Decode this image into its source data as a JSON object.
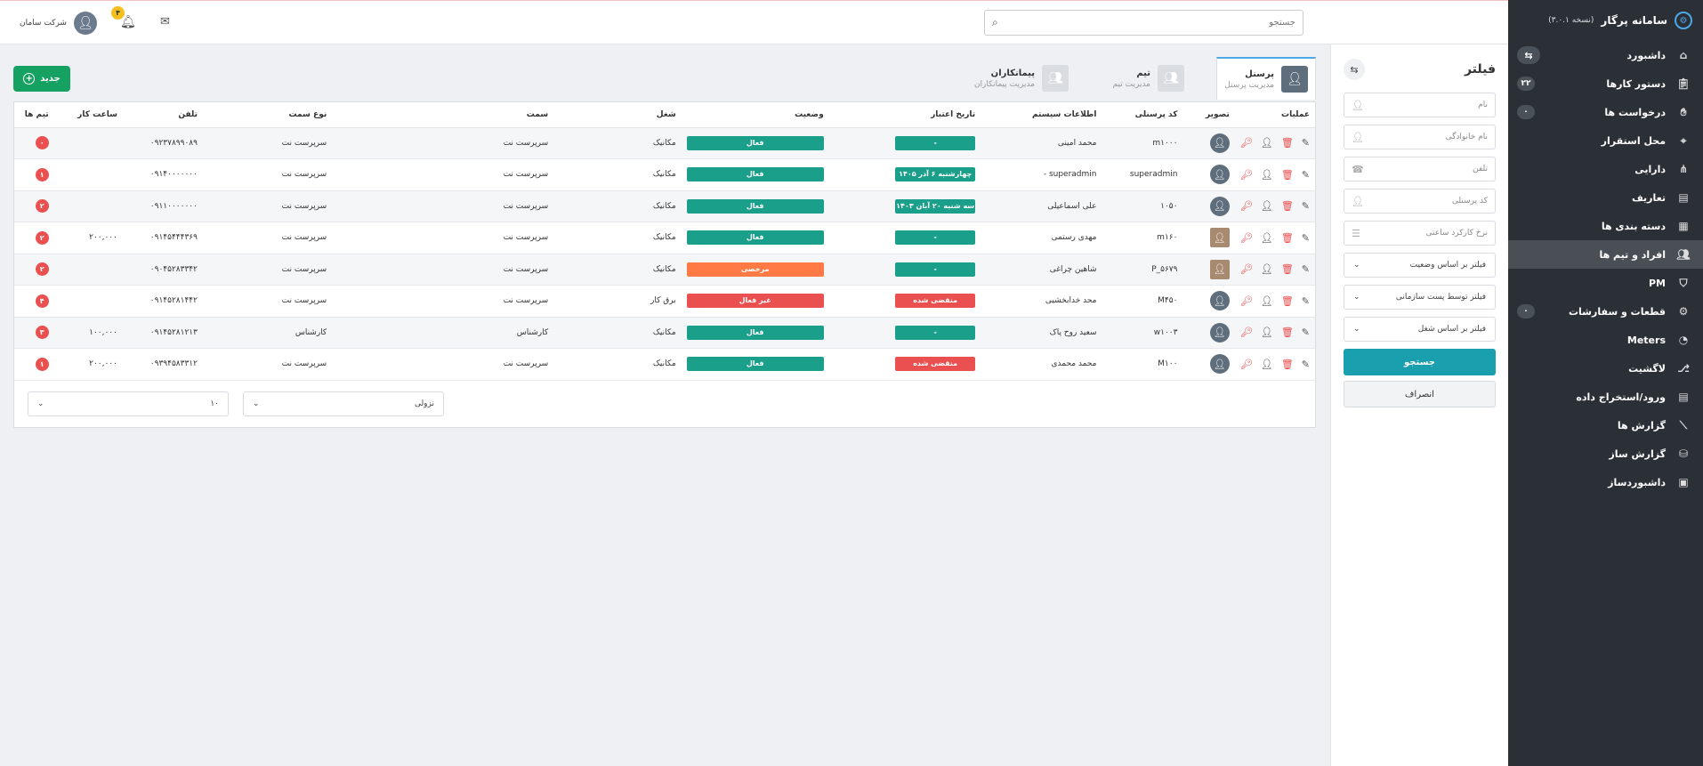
{
  "app": {
    "title": "سامانه پرگار",
    "version": "(نسخه ۳.۰.۱)"
  },
  "sidebar": {
    "items": [
      {
        "label": "داشبورد",
        "icon": "home-icon",
        "badge": null,
        "toggle": "⇆"
      },
      {
        "label": "دستور کارها",
        "icon": "clipboard-icon",
        "badge": "۲۲"
      },
      {
        "label": "درخواست ها",
        "icon": "hand-icon",
        "badge": "۰"
      },
      {
        "label": "محل استقرار",
        "icon": "location-pin-icon",
        "badge": null
      },
      {
        "label": "دارایی",
        "icon": "network-icon",
        "badge": null
      },
      {
        "label": "تعاریف",
        "icon": "book-icon",
        "badge": null
      },
      {
        "label": "دسته بندی ها",
        "icon": "grid-icon",
        "badge": null
      },
      {
        "label": "افراد و تیم ها",
        "icon": "people-icon",
        "badge": null,
        "active": true
      },
      {
        "label": "PM",
        "icon": "shield-icon",
        "badge": null
      },
      {
        "label": "قطعات و سفارشات",
        "icon": "gear-icon",
        "badge": "۰"
      },
      {
        "label": "Meters",
        "icon": "gauge-icon",
        "badge": null
      },
      {
        "label": "لاگشیت",
        "icon": "flow-icon",
        "badge": null
      },
      {
        "label": "ورود/استخراج داده",
        "icon": "book-icon",
        "badge": null
      },
      {
        "label": "گزارش ها",
        "icon": "chart-line-icon",
        "badge": null
      },
      {
        "label": "گزارش ساز",
        "icon": "database-icon",
        "badge": null
      },
      {
        "label": "داشبوردساز",
        "icon": "layout-icon",
        "badge": null
      }
    ]
  },
  "topbar": {
    "search_placeholder": "جستجو",
    "company": "شرکت سامان",
    "notifications": "۴"
  },
  "filter": {
    "title": "فیلتر",
    "swap": "⇆",
    "inputs": [
      {
        "placeholder": "نام",
        "icon": "user-outline-icon"
      },
      {
        "placeholder": "نام خانوادگی",
        "icon": "user-outline-icon"
      },
      {
        "placeholder": "تلفن",
        "icon": "phone-icon"
      },
      {
        "placeholder": "کد پرسنلی",
        "icon": "user-outline-icon"
      },
      {
        "placeholder": "نرخ کارکرد ساعتی",
        "icon": "list-icon"
      }
    ],
    "selects": [
      "فیلتر بر اساس وضعیت",
      "فیلتر توسط پست سازمانی",
      "فیلتر بر اساس شغل"
    ],
    "search_button": "جستجو",
    "cancel_button": "انصراف"
  },
  "tabs": [
    {
      "title": "پرسنل",
      "subtitle": "مدیریت پرسنل",
      "active": true
    },
    {
      "title": "تیم",
      "subtitle": "مدیریت تیم",
      "active": false
    },
    {
      "title": "پیمانکاران",
      "subtitle": "مدیریت پیمانکاران",
      "active": false
    }
  ],
  "new_button": "جدید",
  "table": {
    "headers": [
      "عملیات",
      "تصویر",
      "کد پرسنلی",
      "اطلاعات سیستم",
      "تاریخ اعتبار",
      "وضعیت",
      "شغل",
      "سمت",
      "نوع سمت",
      "تلفن",
      "ساعت کار",
      "تیم ها"
    ],
    "rows": [
      {
        "code": "m۱۰۰۰",
        "name": "محمد امینی",
        "date": "-",
        "date_color": "green",
        "status": "فعال",
        "status_color": "green",
        "job": "مکانیک",
        "position": "سرپرست نت",
        "ptype": "سرپرست نت",
        "phone": "۰۹۲۳۷۸۹۹۰۸۹",
        "hours": "",
        "teams": "۰",
        "photo": false
      },
      {
        "code": "superadmin",
        "name": "superadmin -",
        "date": "چهارشنبه ۶ آذر ۱۴۰۵",
        "date_color": "green",
        "status": "فعال",
        "status_color": "green",
        "job": "مکانیک",
        "position": "سرپرست نت",
        "ptype": "سرپرست نت",
        "phone": "۰۹۱۴۰۰۰۰۰۰۰",
        "hours": "",
        "teams": "۱",
        "photo": false
      },
      {
        "code": "۱۰۵۰",
        "name": "علی اسماعیلی",
        "date": "سه شنبه ۲۰ آبان ۱۴۰۳",
        "date_color": "green",
        "status": "فعال",
        "status_color": "green",
        "job": "مکانیک",
        "position": "سرپرست نت",
        "ptype": "سرپرست نت",
        "phone": "۰۹۱۱۰۰۰۰۰۰۰",
        "hours": "",
        "teams": "۲",
        "photo": false
      },
      {
        "code": "m۱۶۰",
        "name": "مهدی رستمی",
        "date": "-",
        "date_color": "green",
        "status": "فعال",
        "status_color": "green",
        "job": "مکانیک",
        "position": "سرپرست نت",
        "ptype": "سرپرست نت",
        "phone": "۰۹۱۴۵۴۴۴۳۶۹",
        "hours": "۲۰۰,۰۰۰",
        "teams": "۲",
        "photo": true
      },
      {
        "code": "P_۵۶۷۹",
        "name": "شاهین چراغی",
        "date": "-",
        "date_color": "green",
        "status": "مرخصی",
        "status_color": "orange",
        "job": "مکانیک",
        "position": "سرپرست نت",
        "ptype": "سرپرست نت",
        "phone": "۰۹۰۴۵۲۸۳۳۴۲",
        "hours": "",
        "teams": "۲",
        "photo": true
      },
      {
        "code": "M۴۵۰",
        "name": "محد خدابخشیی",
        "date": "منقضی شده",
        "date_color": "red",
        "status": "غیر فعال",
        "status_color": "red",
        "job": "برق کار",
        "position": "سرپرست نت",
        "ptype": "سرپرست نت",
        "phone": "۰۹۱۴۵۲۸۱۴۴۲",
        "hours": "",
        "teams": "۴",
        "photo": false
      },
      {
        "code": "w۱۰۰۳",
        "name": "سعید روح پاک",
        "date": "-",
        "date_color": "green",
        "status": "فعال",
        "status_color": "green",
        "job": "مکانیک",
        "position": "کارشناس",
        "ptype": "کارشناس",
        "phone": "۰۹۱۴۵۲۸۱۲۱۳",
        "hours": "۱۰۰,۰۰۰",
        "teams": "۳",
        "photo": false
      },
      {
        "code": "M۱۰۰",
        "name": "محمد محمدی",
        "date": "منقضی شده",
        "date_color": "red",
        "status": "فعال",
        "status_color": "green",
        "job": "مکانیک",
        "position": "سرپرست نت",
        "ptype": "سرپرست نت",
        "phone": "۰۹۳۹۴۵۸۳۳۱۲",
        "hours": "۲۰۰,۰۰۰",
        "teams": "۱",
        "photo": false
      }
    ]
  },
  "pager": {
    "sort": "نزولی",
    "page_size": "۱۰"
  },
  "colors": {
    "green": "#1a9f8a",
    "red": "#eb5050",
    "orange": "#ff7a45",
    "sidebar": "#2b3037",
    "primary": "#1a9fae",
    "new": "#15a162"
  }
}
